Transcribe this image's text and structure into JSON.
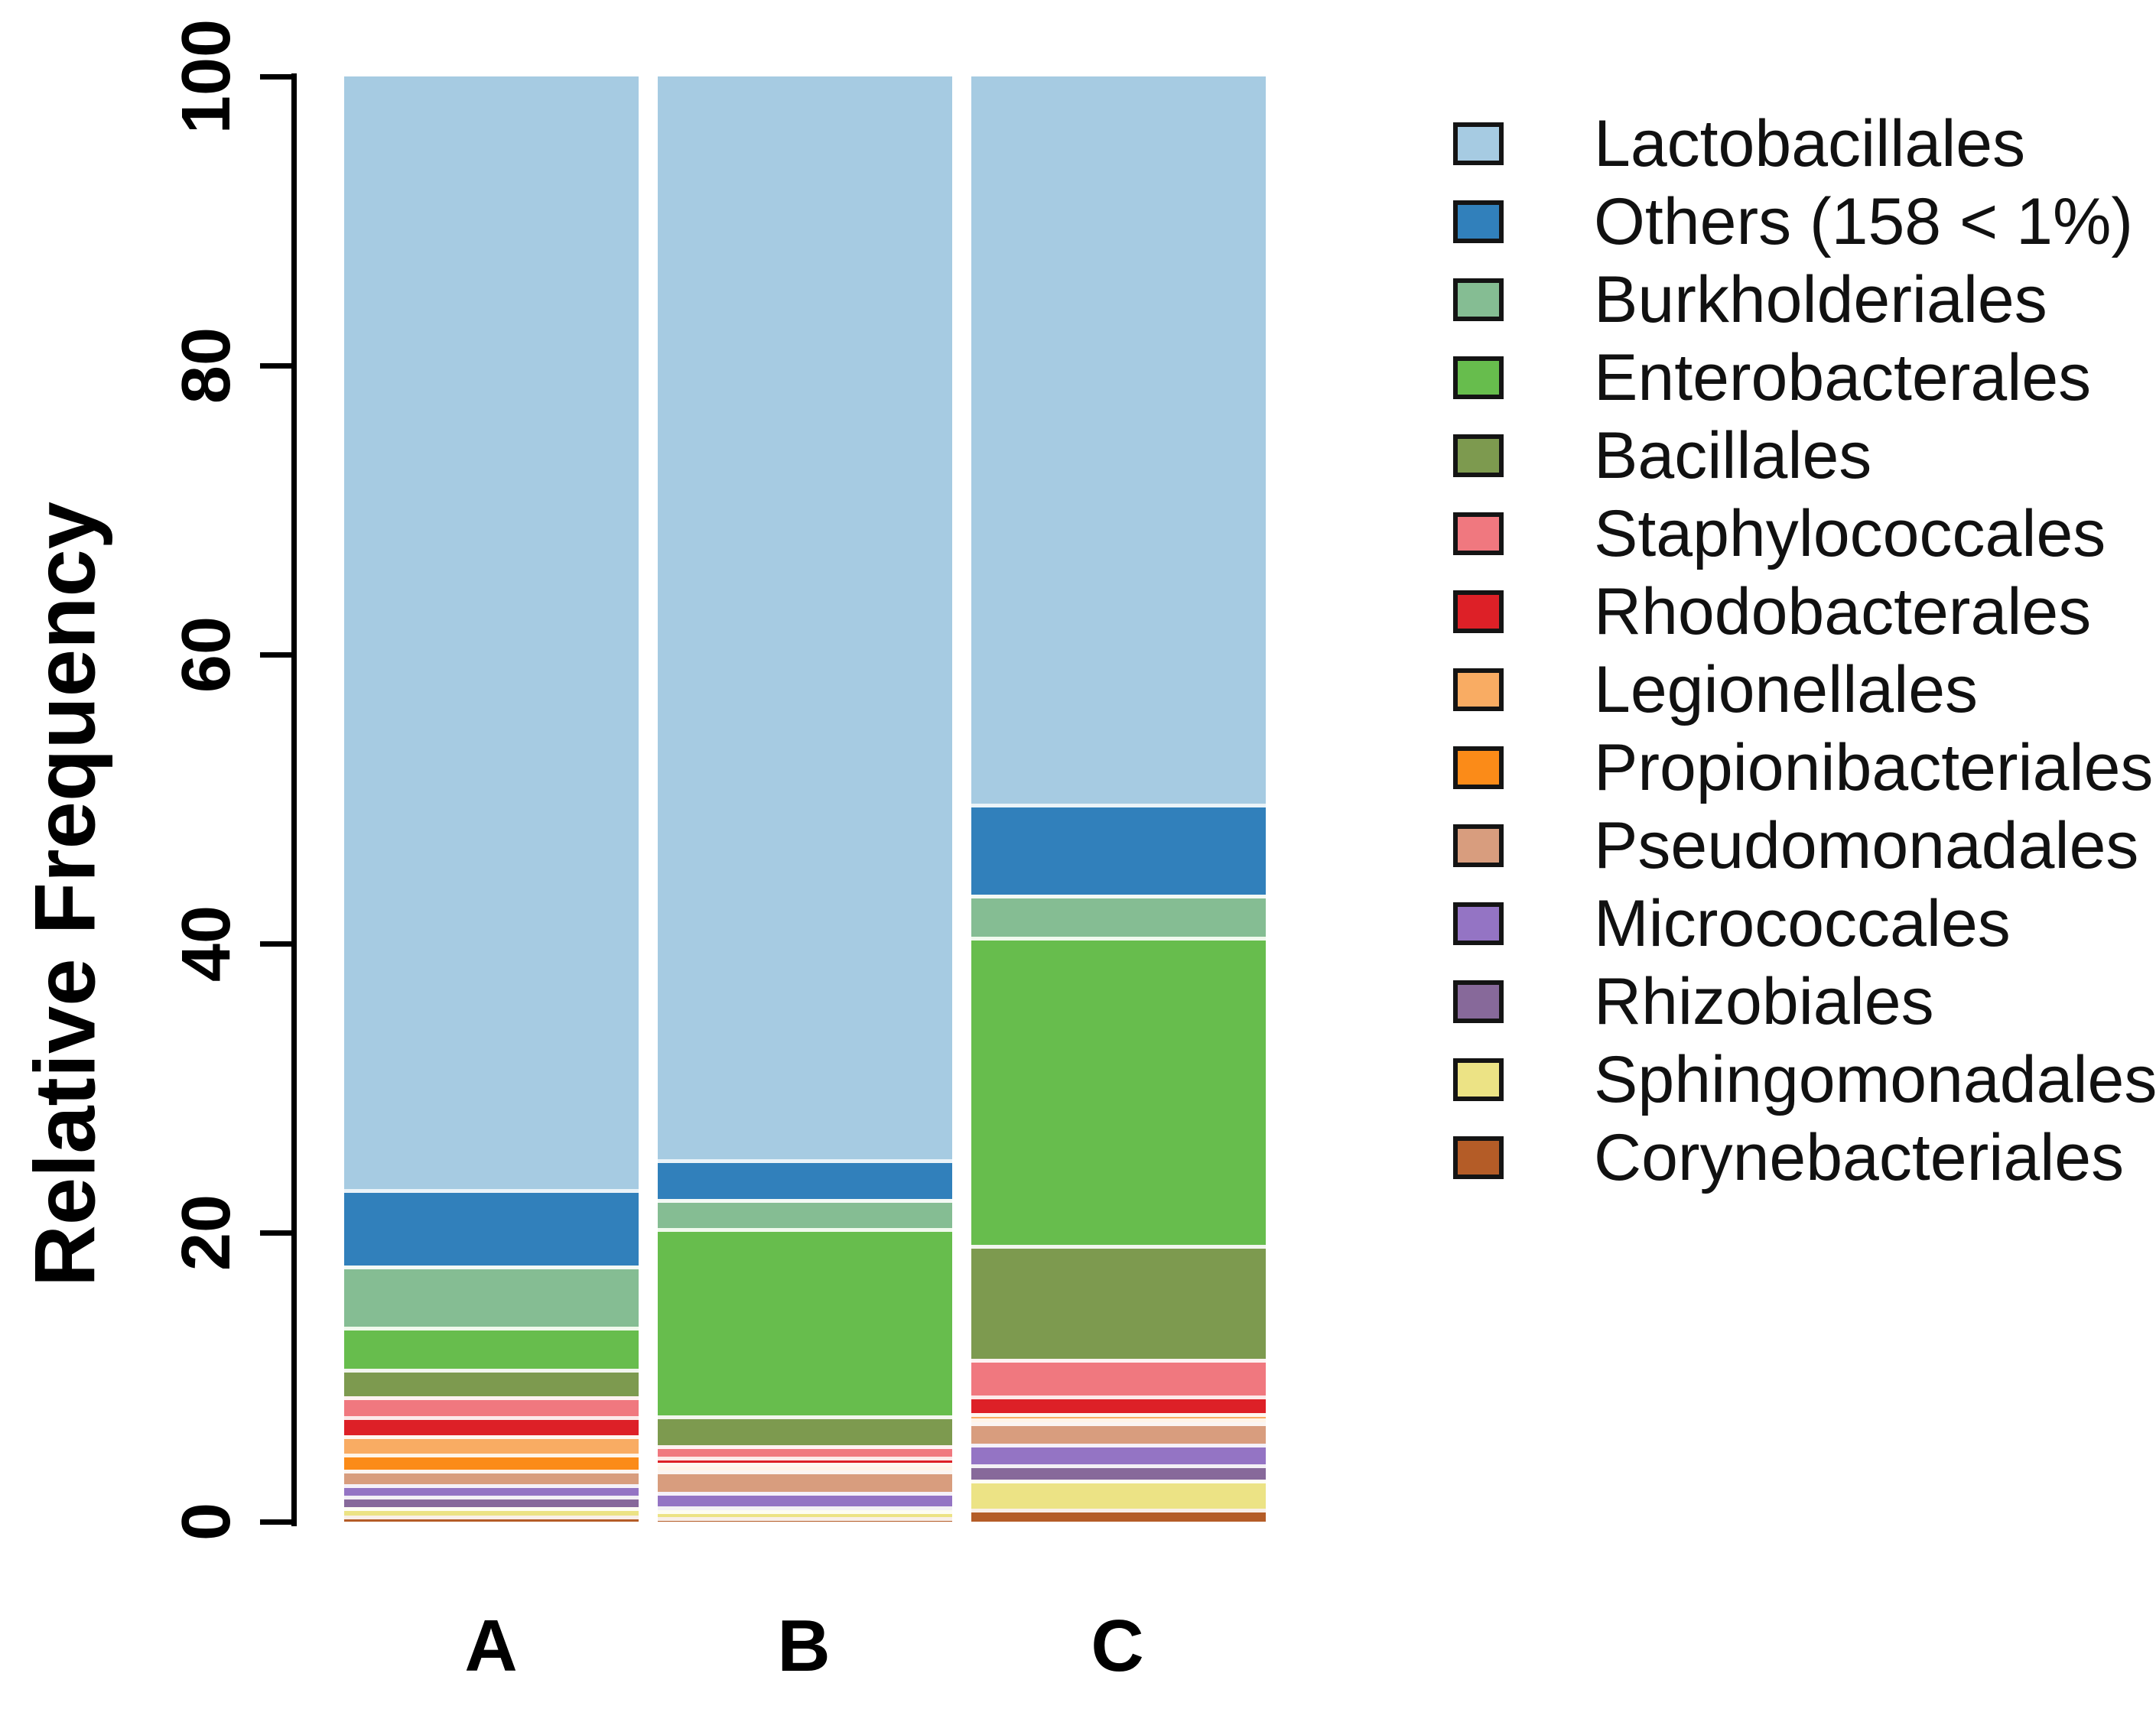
{
  "chart_data": {
    "type": "bar",
    "stacked": true,
    "title": "",
    "xlabel": "",
    "ylabel": "Relative Frequency",
    "ylim": [
      0,
      100
    ],
    "yticks": [
      0,
      20,
      40,
      60,
      80,
      100
    ],
    "grid": false,
    "legend_position": "right",
    "categories": [
      "A",
      "B",
      "C"
    ],
    "series": [
      {
        "name": "Lactobacillales",
        "color": "#a6cbe2",
        "values": [
          77.0,
          75.2,
          50.4
        ]
      },
      {
        "name": "Others (158 < 1%)",
        "color": "#3180bb",
        "values": [
          5.3,
          2.8,
          6.3
        ]
      },
      {
        "name": "Burkholderiales",
        "color": "#85bd93",
        "values": [
          4.2,
          2.0,
          2.9
        ]
      },
      {
        "name": "Enterobacterales",
        "color": "#67bd4d",
        "values": [
          2.9,
          13.0,
          21.4
        ]
      },
      {
        "name": "Bacillales",
        "color": "#7d9a4f",
        "values": [
          1.9,
          2.1,
          7.9
        ]
      },
      {
        "name": "Staphylococcales",
        "color": "#f0787f",
        "values": [
          1.4,
          0.8,
          2.5
        ]
      },
      {
        "name": "Rhodobacterales",
        "color": "#dd2027",
        "values": [
          1.3,
          0.4,
          1.25
        ]
      },
      {
        "name": "Legionellales",
        "color": "#f9ac63",
        "values": [
          1.3,
          0.1,
          0.35
        ]
      },
      {
        "name": "Propionibacteriales",
        "color": "#fb8b18",
        "values": [
          1.1,
          0.1,
          0.1
        ]
      },
      {
        "name": "Pseudomonadales",
        "color": "#d89d7e",
        "values": [
          1.0,
          1.5,
          1.5
        ]
      },
      {
        "name": "Micrococcales",
        "color": "#9474c4",
        "values": [
          0.8,
          1.0,
          1.45
        ]
      },
      {
        "name": "Rhizobiales",
        "color": "#87699a",
        "values": [
          0.8,
          0.2,
          1.05
        ]
      },
      {
        "name": "Sphingomonadales",
        "color": "#ece385",
        "values": [
          0.6,
          0.5,
          2.0
        ]
      },
      {
        "name": "Corynebacteriales",
        "color": "#b45c27",
        "values": [
          0.4,
          0.3,
          0.9
        ]
      }
    ]
  }
}
